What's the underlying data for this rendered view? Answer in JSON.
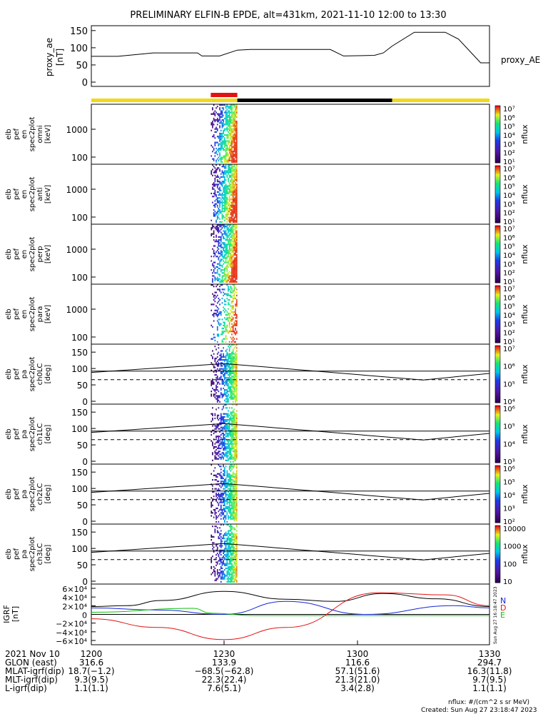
{
  "title": "PRELIMINARY ELFIN-B EPDE, alt=431km, 2021-11-10 12:00 to 13:30",
  "colors": {
    "yellow": "#f2d816",
    "red": "#e31212",
    "black": "#000000",
    "blue": "#1426d8",
    "green": "#10c010",
    "grid": "#000000"
  },
  "ae_panel": {
    "ylabel": [
      "proxy_ae",
      "[nT]"
    ],
    "legend": "proxy_AE",
    "yticks": [
      "0",
      "50",
      "100",
      "150"
    ]
  },
  "spec_panels": [
    {
      "ylabel": [
        "elb",
        "pef",
        "en",
        "spec2plot",
        "omni",
        "[keV]"
      ],
      "yticks": [
        "100",
        "1000"
      ],
      "cb_ticks": [
        "10¹",
        "10²",
        "10³",
        "10⁴",
        "10⁵",
        "10⁶",
        "10⁷"
      ],
      "cb_label": "nflux"
    },
    {
      "ylabel": [
        "elb",
        "pef",
        "en",
        "spec2plot",
        "anti",
        "[keV]"
      ],
      "yticks": [
        "100",
        "1000"
      ],
      "cb_ticks": [
        "10¹",
        "10²",
        "10³",
        "10⁴",
        "10⁵",
        "10⁶",
        "10⁷"
      ],
      "cb_label": "nflux"
    },
    {
      "ylabel": [
        "elb",
        "pef",
        "en",
        "spec2plot",
        "perp",
        "[keV]"
      ],
      "yticks": [
        "100",
        "1000"
      ],
      "cb_ticks": [
        "10¹",
        "10²",
        "10³",
        "10⁴",
        "10⁵",
        "10⁶",
        "10⁷"
      ],
      "cb_label": "nflux"
    },
    {
      "ylabel": [
        "elb",
        "pef",
        "en",
        "spec2plot",
        "para",
        "[keV]"
      ],
      "yticks": [
        "100",
        "1000"
      ],
      "cb_ticks": [
        "10¹",
        "10²",
        "10³",
        "10⁴",
        "10⁵",
        "10⁶",
        "10⁷"
      ],
      "cb_label": "nflux"
    }
  ],
  "pa_panels": [
    {
      "ylabel": [
        "elb",
        "pef",
        "pa",
        "spec2plot",
        "ch0LC",
        "[deg]"
      ],
      "yticks": [
        "0",
        "50",
        "100",
        "150"
      ],
      "cb_ticks": [
        "10⁴",
        "10⁵",
        "10⁶",
        "10⁷"
      ],
      "cb_label": "nflux"
    },
    {
      "ylabel": [
        "elb",
        "pef",
        "pa",
        "spec2plot",
        "ch1LC",
        "[deg]"
      ],
      "yticks": [
        "0",
        "50",
        "100",
        "150"
      ],
      "cb_ticks": [
        "10³",
        "10⁴",
        "10⁵",
        "10⁶"
      ],
      "cb_label": "nflux"
    },
    {
      "ylabel": [
        "elb",
        "pef",
        "pa",
        "spec2plot",
        "ch2LC",
        "[deg]"
      ],
      "yticks": [
        "0",
        "50",
        "100",
        "150"
      ],
      "cb_ticks": [
        "10²",
        "10³",
        "10⁴",
        "10⁵",
        "10⁶"
      ],
      "cb_label": "nflux"
    },
    {
      "ylabel": [
        "elb",
        "pef",
        "pa",
        "spec2plot",
        "ch3LC",
        "[deg]"
      ],
      "yticks": [
        "0",
        "50",
        "100",
        "150"
      ],
      "cb_ticks": [
        "10",
        "100",
        "1000",
        "10000"
      ],
      "cb_label": "nflux"
    }
  ],
  "igrf_panel": {
    "ylabel": [
      "IGRF",
      "[nT]"
    ],
    "yticks": [
      "−6×10⁴",
      "−4×10⁴",
      "−2×10⁴",
      "0",
      "2×10⁴",
      "4×10⁴",
      "6×10⁴"
    ],
    "legend": [
      "N",
      "D",
      "E"
    ],
    "stamp": "Sun Aug 27 16:18:47 2023"
  },
  "footer": {
    "rows": [
      [
        "2021 Nov 10",
        "1200",
        "1230",
        "1300",
        "1330"
      ],
      [
        "GLON (east)",
        "316.6",
        "133.9",
        "116.6",
        "294.7"
      ],
      [
        "MLAT-igrf(dip)",
        "18.7(−1.2)",
        "−68.5(−62.8)",
        "57.1(51.6)",
        "16.3(11.8)"
      ],
      [
        "MLT-igrf(dip)",
        "9.3(9.5)",
        "22.3(22.4)",
        "21.3(21.0)",
        "9.7(9.5)"
      ],
      [
        "L-igrf(dip)",
        "1.1(1.1)",
        "7.6(5.1)",
        "3.4(2.8)",
        "1.1(1.1)"
      ]
    ],
    "units": "nflux: #/(cm^2 s sr MeV)",
    "created": "Created: Sun Aug 27 23:18:47 2023"
  },
  "chart_data": {
    "type": "line",
    "title": "PRELIMINARY ELFIN-B EPDE, alt=431km, 2021-11-10 12:00 to 13:30",
    "x_range": [
      "12:00",
      "13:30"
    ],
    "proxy_ae": {
      "ylim": [
        0,
        160
      ],
      "t": [
        "12:00",
        "12:06",
        "12:14",
        "12:24",
        "12:25",
        "12:29",
        "12:33",
        "12:36",
        "12:54",
        "12:57",
        "13:04",
        "13:06",
        "13:08",
        "13:13",
        "13:20",
        "13:23",
        "13:28",
        "13:30"
      ],
      "values": [
        75,
        75,
        85,
        85,
        76,
        76,
        93,
        95,
        95,
        76,
        78,
        85,
        105,
        145,
        145,
        125,
        56,
        56
      ]
    },
    "sci_zone_bar": [
      {
        "from": "12:00",
        "to": "12:27",
        "color": "yellow"
      },
      {
        "from": "12:27",
        "to": "12:33",
        "color": "red"
      },
      {
        "from": "12:33",
        "to": "13:08",
        "color": "black"
      },
      {
        "from": "13:08",
        "to": "13:30",
        "color": "yellow"
      }
    ],
    "spectrogram_window": [
      "12:27",
      "12:33"
    ],
    "loss_cone_deg": {
      "t": [
        "12:00",
        "12:30",
        "13:15",
        "13:30"
      ],
      "solid": [
        88,
        115,
        65,
        85
      ],
      "dashed": [
        66,
        66,
        66,
        66
      ]
    },
    "igrf": {
      "ylim": [
        -60000,
        60000
      ],
      "series": [
        {
          "name": "N",
          "color": "black",
          "t": [
            "12:00",
            "12:08",
            "12:16",
            "12:30",
            "12:44",
            "12:55",
            "13:06",
            "13:18",
            "13:30"
          ],
          "values": [
            18000,
            20000,
            32000,
            53000,
            35000,
            30000,
            48000,
            36000,
            18000
          ]
        },
        {
          "name": "D",
          "color": "red",
          "t": [
            "12:00",
            "12:15",
            "12:30",
            "12:44",
            "13:05",
            "13:20",
            "13:30"
          ],
          "values": [
            -10000,
            -30000,
            -58000,
            -30000,
            50000,
            45000,
            20000
          ]
        },
        {
          "name": "E",
          "color": "blue",
          "t": [
            "12:00",
            "12:15",
            "12:30",
            "12:44",
            "13:02",
            "13:22",
            "13:30"
          ],
          "values": [
            15000,
            10000,
            0,
            30000,
            0,
            20000,
            15000
          ]
        },
        {
          "name": "",
          "color": "green",
          "t": [
            "12:00",
            "12:23",
            "12:27",
            "12:37",
            "13:30"
          ],
          "values": [
            5000,
            14000,
            3000,
            -3000,
            -3000
          ]
        }
      ]
    }
  }
}
